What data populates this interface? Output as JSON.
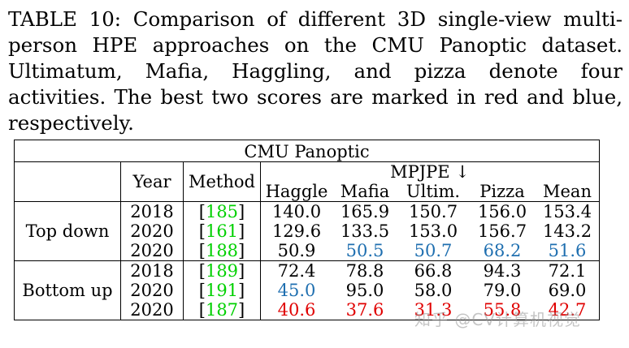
{
  "caption": {
    "line1": "TABLE 10: Comparison of different 3D single-view multi-",
    "line2": "person HPE approaches on the CMU Panoptic dataset.",
    "line3": "Ultimatum, Mafia, Haggling, and pizza denote four activities.",
    "line4": "The best two scores are marked in red and blue, respectively."
  },
  "table": {
    "dataset": "CMU Panoptic",
    "year_header": "Year",
    "method_header": "Method",
    "metric_header": "MPJPE ↓",
    "columns": [
      "Haggle",
      "Mafia",
      "Ultim.",
      "Pizza",
      "Mean"
    ],
    "groups": [
      {
        "name": "Top down",
        "rows": [
          {
            "year": "2018",
            "ref": "185",
            "values": [
              "140.0",
              "165.9",
              "150.7",
              "156.0",
              "153.4"
            ]
          },
          {
            "year": "2020",
            "ref": "161",
            "values": [
              "129.6",
              "133.5",
              "153.0",
              "156.7",
              "143.2"
            ]
          },
          {
            "year": "2020",
            "ref": "188",
            "values": [
              "50.9",
              "50.5",
              "50.7",
              "68.2",
              "51.6"
            ]
          }
        ]
      },
      {
        "name": "Bottom up",
        "rows": [
          {
            "year": "2018",
            "ref": "189",
            "values": [
              "72.4",
              "78.8",
              "66.8",
              "94.3",
              "72.1"
            ]
          },
          {
            "year": "2020",
            "ref": "191",
            "values": [
              "45.0",
              "95.0",
              "58.0",
              "79.0",
              "69.0"
            ]
          },
          {
            "year": "2020",
            "ref": "187",
            "values": [
              "40.6",
              "37.6",
              "31.3",
              "55.8",
              "42.7"
            ]
          }
        ]
      }
    ]
  },
  "colors": {
    "red": "#e00000",
    "blue": "#1f6fb0",
    "ref_green": "#00d000"
  },
  "watermark": "知乎 @CV计算机视觉"
}
